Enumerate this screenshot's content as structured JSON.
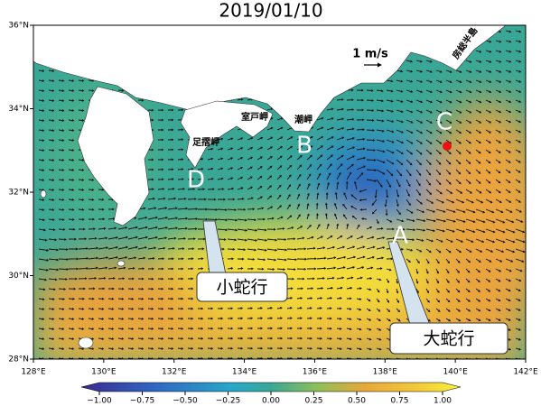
{
  "map": {
    "title": "2019/01/10",
    "xlim": [
      128,
      142
    ],
    "ylim": [
      28,
      36
    ],
    "xticks": [
      {
        "value": 128,
        "label": "128°E"
      },
      {
        "value": 130,
        "label": "130°E"
      },
      {
        "value": 132,
        "label": "132°E"
      },
      {
        "value": 134,
        "label": "134°E"
      },
      {
        "value": 136,
        "label": "136°E"
      },
      {
        "value": 138,
        "label": "138°E"
      },
      {
        "value": 140,
        "label": "140°E"
      },
      {
        "value": 142,
        "label": "142°E"
      }
    ],
    "yticks": [
      {
        "value": 28,
        "label": "28°N"
      },
      {
        "value": 30,
        "label": "30°N"
      },
      {
        "value": 32,
        "label": "32°N"
      },
      {
        "value": 34,
        "label": "34°N"
      },
      {
        "value": 36,
        "label": "36°N"
      }
    ],
    "colorbar": {
      "lim": [
        -1,
        1
      ],
      "ticks": [
        {
          "value": -1,
          "label": "−1.00"
        },
        {
          "value": -0.75,
          "label": "−0.75"
        },
        {
          "value": -0.5,
          "label": "−0.50"
        },
        {
          "value": -0.25,
          "label": "−0.25"
        },
        {
          "value": 0,
          "label": "0.00"
        },
        {
          "value": 0.25,
          "label": "0.25"
        },
        {
          "value": 0.5,
          "label": "0.50"
        },
        {
          "value": 0.75,
          "label": "0.75"
        },
        {
          "value": 1,
          "label": "1.00"
        }
      ]
    },
    "scale_label": "1 m/s",
    "place_names": [
      "室戸岬",
      "足摺岬",
      "潮岬",
      "房総半島"
    ],
    "points": [
      "A",
      "B",
      "C",
      "D"
    ],
    "callouts": [
      "小蛇行",
      "大蛇行"
    ]
  }
}
